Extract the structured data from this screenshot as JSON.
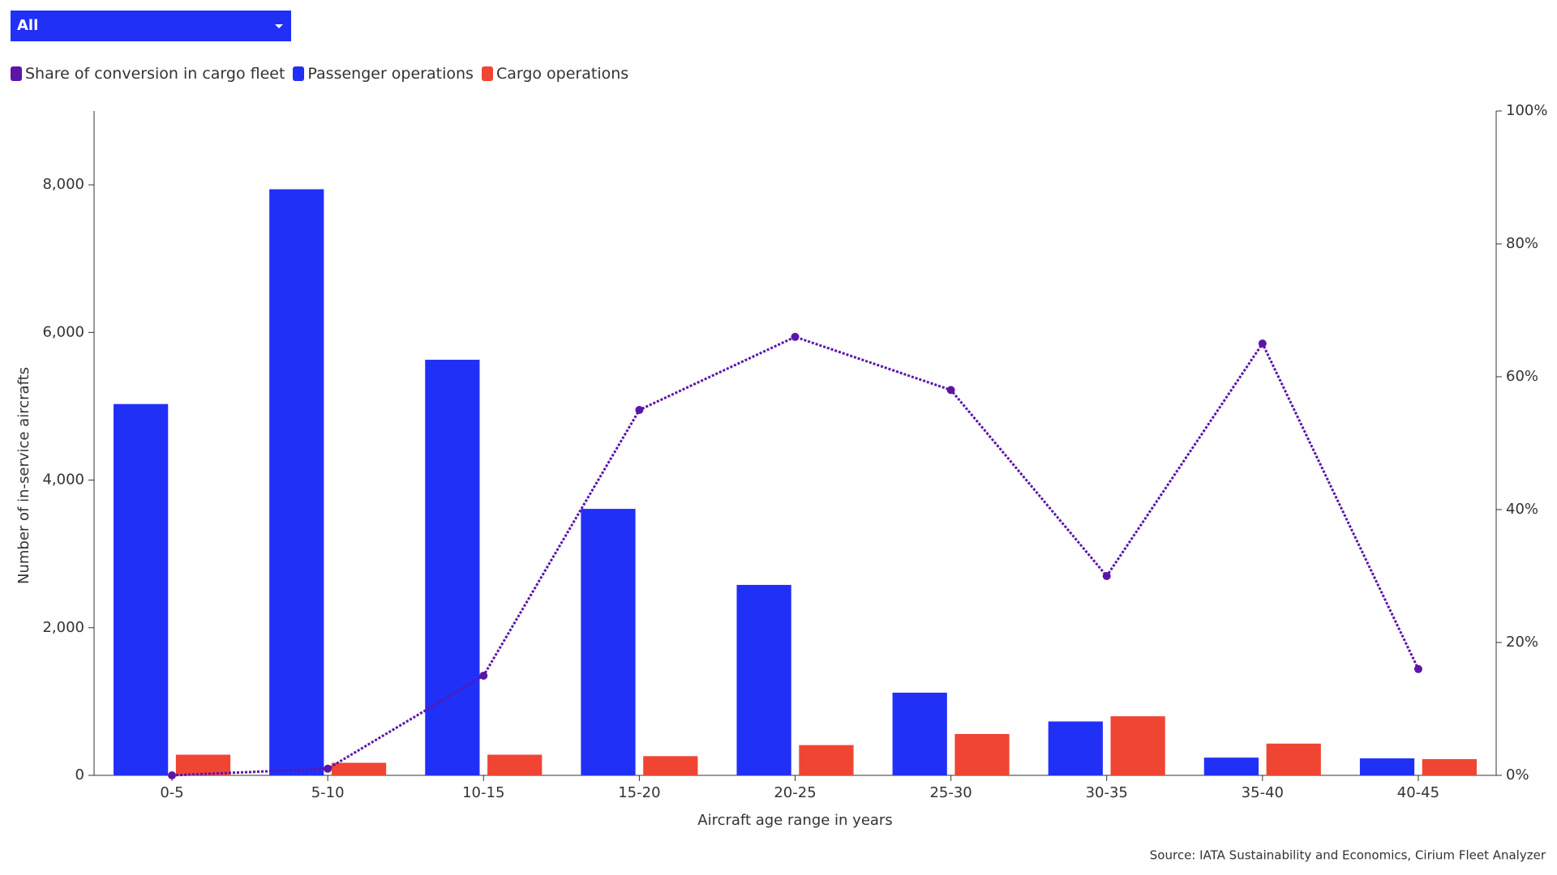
{
  "filter": "All",
  "chart_data": {
    "type": "bar",
    "x_label": "Aircraft age range in years",
    "y_label": "Number of in-service aircrafts",
    "source": "Source: IATA Sustainability and Economics, Cirium Fleet Analyzer",
    "categories": [
      "0-5",
      "5-10",
      "10-15",
      "15-20",
      "20-25",
      "25-30",
      "30-35",
      "35-40",
      "40-45"
    ],
    "series": [
      {
        "name": "Share of conversion in cargo fleet",
        "color": "#5b16a8",
        "type": "line",
        "axis": "y2",
        "values": [
          0,
          1,
          15,
          55,
          66,
          58,
          30,
          65,
          16
        ]
      },
      {
        "name": "Passenger operations",
        "color": "#2130f7",
        "type": "bar",
        "values": [
          5030,
          7940,
          5630,
          3610,
          2580,
          1120,
          730,
          240,
          230
        ]
      },
      {
        "name": "Cargo operations",
        "color": "#f04533",
        "type": "bar",
        "values": [
          280,
          170,
          280,
          260,
          410,
          560,
          800,
          430,
          220
        ]
      }
    ],
    "ylim": [
      0,
      9000
    ],
    "yticks": [
      0,
      {
        "value": 2000,
        "label": "2,000"
      },
      {
        "value": 4000,
        "label": "4,000"
      },
      {
        "value": 6000,
        "label": "6,000"
      },
      {
        "value": 8000,
        "label": "8,000"
      }
    ],
    "y2lim": [
      0,
      100
    ],
    "y2ticks": [
      {
        "value": 0,
        "label": "0%"
      },
      {
        "value": 20,
        "label": "20%"
      },
      {
        "value": 40,
        "label": "40%"
      },
      {
        "value": 60,
        "label": "60%"
      },
      {
        "value": 80,
        "label": "80%"
      },
      {
        "value": 100,
        "label": "100%"
      }
    ]
  }
}
